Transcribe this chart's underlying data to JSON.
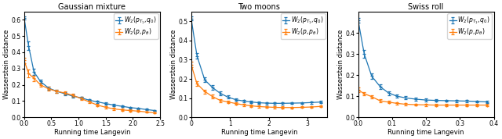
{
  "panels": [
    {
      "title": "Gaussian mixture",
      "xlabel": "Running time Langevin",
      "ylabel": "Wasserstein distance",
      "xlim": [
        0,
        2.5
      ],
      "ylim": [
        0,
        0.65
      ],
      "yticks": [
        0.0,
        0.1,
        0.2,
        0.3,
        0.4,
        0.5,
        0.6
      ],
      "xticks": [
        0.0,
        0.5,
        1.0,
        1.5,
        2.0,
        2.5
      ],
      "blue_x": [
        0.0,
        0.08,
        0.18,
        0.3,
        0.45,
        0.6,
        0.75,
        0.9,
        1.05,
        1.2,
        1.35,
        1.5,
        1.65,
        1.8,
        1.95,
        2.1,
        2.25,
        2.4
      ],
      "blue_y": [
        0.61,
        0.44,
        0.28,
        0.22,
        0.18,
        0.16,
        0.145,
        0.13,
        0.12,
        0.105,
        0.095,
        0.085,
        0.075,
        0.068,
        0.06,
        0.055,
        0.048,
        0.042
      ],
      "blue_err": [
        0.01,
        0.025,
        0.018,
        0.014,
        0.011,
        0.01,
        0.009,
        0.009,
        0.008,
        0.008,
        0.007,
        0.007,
        0.006,
        0.006,
        0.005,
        0.005,
        0.005,
        0.004
      ],
      "orange_x": [
        0.0,
        0.08,
        0.18,
        0.3,
        0.45,
        0.6,
        0.75,
        0.9,
        1.05,
        1.2,
        1.35,
        1.5,
        1.65,
        1.8,
        1.95,
        2.1,
        2.25,
        2.4
      ],
      "orange_y": [
        0.35,
        0.27,
        0.24,
        0.2,
        0.175,
        0.16,
        0.15,
        0.135,
        0.115,
        0.095,
        0.075,
        0.062,
        0.052,
        0.046,
        0.042,
        0.038,
        0.033,
        0.028
      ],
      "orange_err": [
        0.018,
        0.022,
        0.016,
        0.013,
        0.012,
        0.011,
        0.01,
        0.01,
        0.009,
        0.009,
        0.008,
        0.007,
        0.006,
        0.006,
        0.005,
        0.005,
        0.004,
        0.004
      ]
    },
    {
      "title": "Two moons",
      "xlabel": "Running time Langevin",
      "ylabel": "Wasserstein distance",
      "xlim": [
        0,
        3.5
      ],
      "ylim": [
        0,
        0.55
      ],
      "yticks": [
        0.0,
        0.1,
        0.2,
        0.3,
        0.4,
        0.5
      ],
      "xticks": [
        0,
        1,
        2,
        3
      ],
      "blue_x": [
        0.0,
        0.15,
        0.35,
        0.55,
        0.75,
        0.95,
        1.15,
        1.35,
        1.55,
        1.75,
        1.95,
        2.15,
        2.35,
        2.6,
        2.85,
        3.1,
        3.35
      ],
      "blue_y": [
        0.515,
        0.32,
        0.195,
        0.155,
        0.125,
        0.105,
        0.092,
        0.085,
        0.08,
        0.076,
        0.074,
        0.073,
        0.073,
        0.074,
        0.075,
        0.077,
        0.08
      ],
      "blue_err": [
        0.01,
        0.016,
        0.013,
        0.011,
        0.009,
        0.008,
        0.007,
        0.007,
        0.006,
        0.006,
        0.006,
        0.006,
        0.005,
        0.005,
        0.005,
        0.005,
        0.005
      ],
      "orange_x": [
        0.0,
        0.15,
        0.35,
        0.55,
        0.75,
        0.95,
        1.15,
        1.35,
        1.55,
        1.75,
        1.95,
        2.15,
        2.35,
        2.6,
        2.85,
        3.1,
        3.35
      ],
      "orange_y": [
        0.275,
        0.175,
        0.135,
        0.108,
        0.088,
        0.08,
        0.072,
        0.065,
        0.06,
        0.056,
        0.054,
        0.052,
        0.051,
        0.051,
        0.052,
        0.054,
        0.057
      ],
      "orange_err": [
        0.015,
        0.013,
        0.01,
        0.009,
        0.008,
        0.007,
        0.006,
        0.006,
        0.005,
        0.005,
        0.005,
        0.005,
        0.005,
        0.004,
        0.004,
        0.004,
        0.004
      ]
    },
    {
      "title": "Swiss roll",
      "xlabel": "Running time Langevin",
      "ylabel": "Wasserstein distance",
      "xlim": [
        0,
        0.4
      ],
      "ylim": [
        0,
        0.5
      ],
      "yticks": [
        0.0,
        0.1,
        0.2,
        0.3,
        0.4
      ],
      "xticks": [
        0.0,
        0.1,
        0.2,
        0.3,
        0.4
      ],
      "blue_x": [
        0.0,
        0.018,
        0.04,
        0.065,
        0.09,
        0.115,
        0.14,
        0.17,
        0.2,
        0.23,
        0.26,
        0.29,
        0.32,
        0.35,
        0.38
      ],
      "blue_y": [
        0.46,
        0.3,
        0.195,
        0.145,
        0.115,
        0.1,
        0.092,
        0.086,
        0.082,
        0.08,
        0.079,
        0.078,
        0.077,
        0.075,
        0.073
      ],
      "blue_err": [
        0.012,
        0.018,
        0.014,
        0.011,
        0.009,
        0.008,
        0.007,
        0.006,
        0.006,
        0.006,
        0.005,
        0.005,
        0.005,
        0.005,
        0.005
      ],
      "orange_x": [
        0.0,
        0.018,
        0.04,
        0.065,
        0.09,
        0.115,
        0.14,
        0.17,
        0.2,
        0.23,
        0.26,
        0.29,
        0.32,
        0.35,
        0.38
      ],
      "orange_y": [
        0.13,
        0.112,
        0.098,
        0.078,
        0.072,
        0.066,
        0.062,
        0.06,
        0.059,
        0.058,
        0.058,
        0.058,
        0.058,
        0.058,
        0.058
      ],
      "orange_err": [
        0.01,
        0.009,
        0.008,
        0.007,
        0.006,
        0.006,
        0.005,
        0.005,
        0.005,
        0.005,
        0.004,
        0.004,
        0.004,
        0.004,
        0.004
      ]
    }
  ],
  "blue_color": "#1f77b4",
  "orange_color": "#ff7f0e",
  "blue_label": "$W_2(p_{T_1}, q_0)$",
  "orange_label": "$W_2(p, p_\\theta)$",
  "fig_width": 6.4,
  "fig_height": 1.78,
  "dpi": 100,
  "title_fontsize": 7,
  "label_fontsize": 6,
  "tick_fontsize": 5.5,
  "legend_fontsize": 5.5
}
